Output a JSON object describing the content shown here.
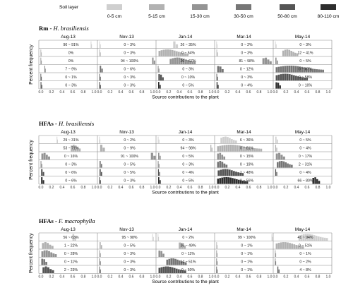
{
  "chart_data": {
    "type": "histogram-grid",
    "legend": {
      "title": "Soil layer",
      "items": [
        {
          "label": "0-5 cm",
          "color": "#cfcfcf"
        },
        {
          "label": "5-15 cm",
          "color": "#b2b2b2"
        },
        {
          "label": "15-30 cm",
          "color": "#949494"
        },
        {
          "label": "30-50 cm",
          "color": "#767676"
        },
        {
          "label": "50-80 cm",
          "color": "#555555"
        },
        {
          "label": "80-110 cm",
          "color": "#2e2e2e"
        }
      ]
    },
    "months": [
      "Aug-13",
      "Nov-13",
      "Jan-14",
      "Mar-14",
      "May-14"
    ],
    "x_ticks": [
      "0.0",
      "0.2",
      "0.4",
      "0.6",
      "0.8",
      "1.0"
    ],
    "xlabel": "Source contributions to the plant",
    "ylabel": "Percent frequency",
    "panels": [
      {
        "title_bold": "Rm",
        "title_italic": "H. brasiliensis",
        "cells": [
          [
            "90 ~ 91%",
            "0%",
            "0%",
            "7 ~ 9%",
            "0 ~ 1%",
            "0 ~ 3%"
          ],
          [
            "0 ~ 3%",
            "0 ~ 3%",
            "94 ~ 100%",
            "0 ~ 6%",
            "0 ~ 3%",
            "0 ~ 3%"
          ],
          [
            "26 ~ 35%",
            "0 ~ 54%",
            "20 ~ 67%",
            "0 ~ 3%",
            "0 ~ 10%",
            "0 ~ 5%"
          ],
          [
            "0 ~ 2%",
            "0 ~ 3%",
            "81 ~ 98%",
            "0 ~ 12%",
            "0 ~ 3%",
            "0 ~ 4%"
          ],
          [
            "0 ~ 3%",
            "12 ~ 41%",
            "0 ~ 5%",
            "0 ~ 87%",
            "0 ~ 58%",
            "0 ~ 10%"
          ]
        ]
      },
      {
        "title_bold": "HFAs",
        "title_italic": "H. brasiliensis",
        "cells": [
          [
            "29 ~ 31%",
            "53 ~ 71%",
            "0 ~ 16%",
            "0 ~ 3%",
            "0 ~ 6%",
            "0 ~ 6%"
          ],
          [
            "0 ~ 2%",
            "0 ~ 9%",
            "91 ~ 100%",
            "0 ~ 5%",
            "0 ~ 5%",
            "0 ~ 3%"
          ],
          [
            "0 ~ 3%",
            "94 ~ 98%",
            "0 ~ 5%",
            "0 ~ 3%",
            "0 ~ 4%",
            "0 ~ 5%"
          ],
          [
            "6 ~ 36%",
            "0 ~ 81%",
            "0 ~ 15%",
            "0 ~ 19%",
            "1 ~ 48%",
            "0 ~ 56%"
          ],
          [
            "0 ~ 5%",
            "0 ~ 4%",
            "0 ~ 17%",
            "2 ~ 31%",
            "0 ~ 4%",
            "66 ~ 80%"
          ]
        ]
      },
      {
        "title_bold": "HFAs",
        "title_italic": "F. macrophylla",
        "cells": [
          [
            "56 ~ 63%",
            "1 ~ 22%",
            "0 ~ 28%",
            "0 ~ 11%",
            "2 ~ 23%"
          ],
          [
            "95 ~ 98%",
            "0 ~ 5%",
            "0 ~ 3%",
            "0 ~ 3%",
            "0 ~ 3%"
          ],
          [
            "0 ~ 2%",
            "36 ~ 49%",
            "0 ~ 11%",
            "14 ~ 51%",
            "0 ~ 50%"
          ],
          [
            "99 ~ 100%",
            "0 ~ 1%",
            "0 ~ 1%",
            "0 ~ 1%",
            "0 ~ 1%"
          ],
          [
            "41 ~ 94%",
            "0 ~ 51%",
            "0 ~ 1%",
            "0 ~ 2%",
            "4 ~ 8%"
          ]
        ]
      }
    ]
  }
}
